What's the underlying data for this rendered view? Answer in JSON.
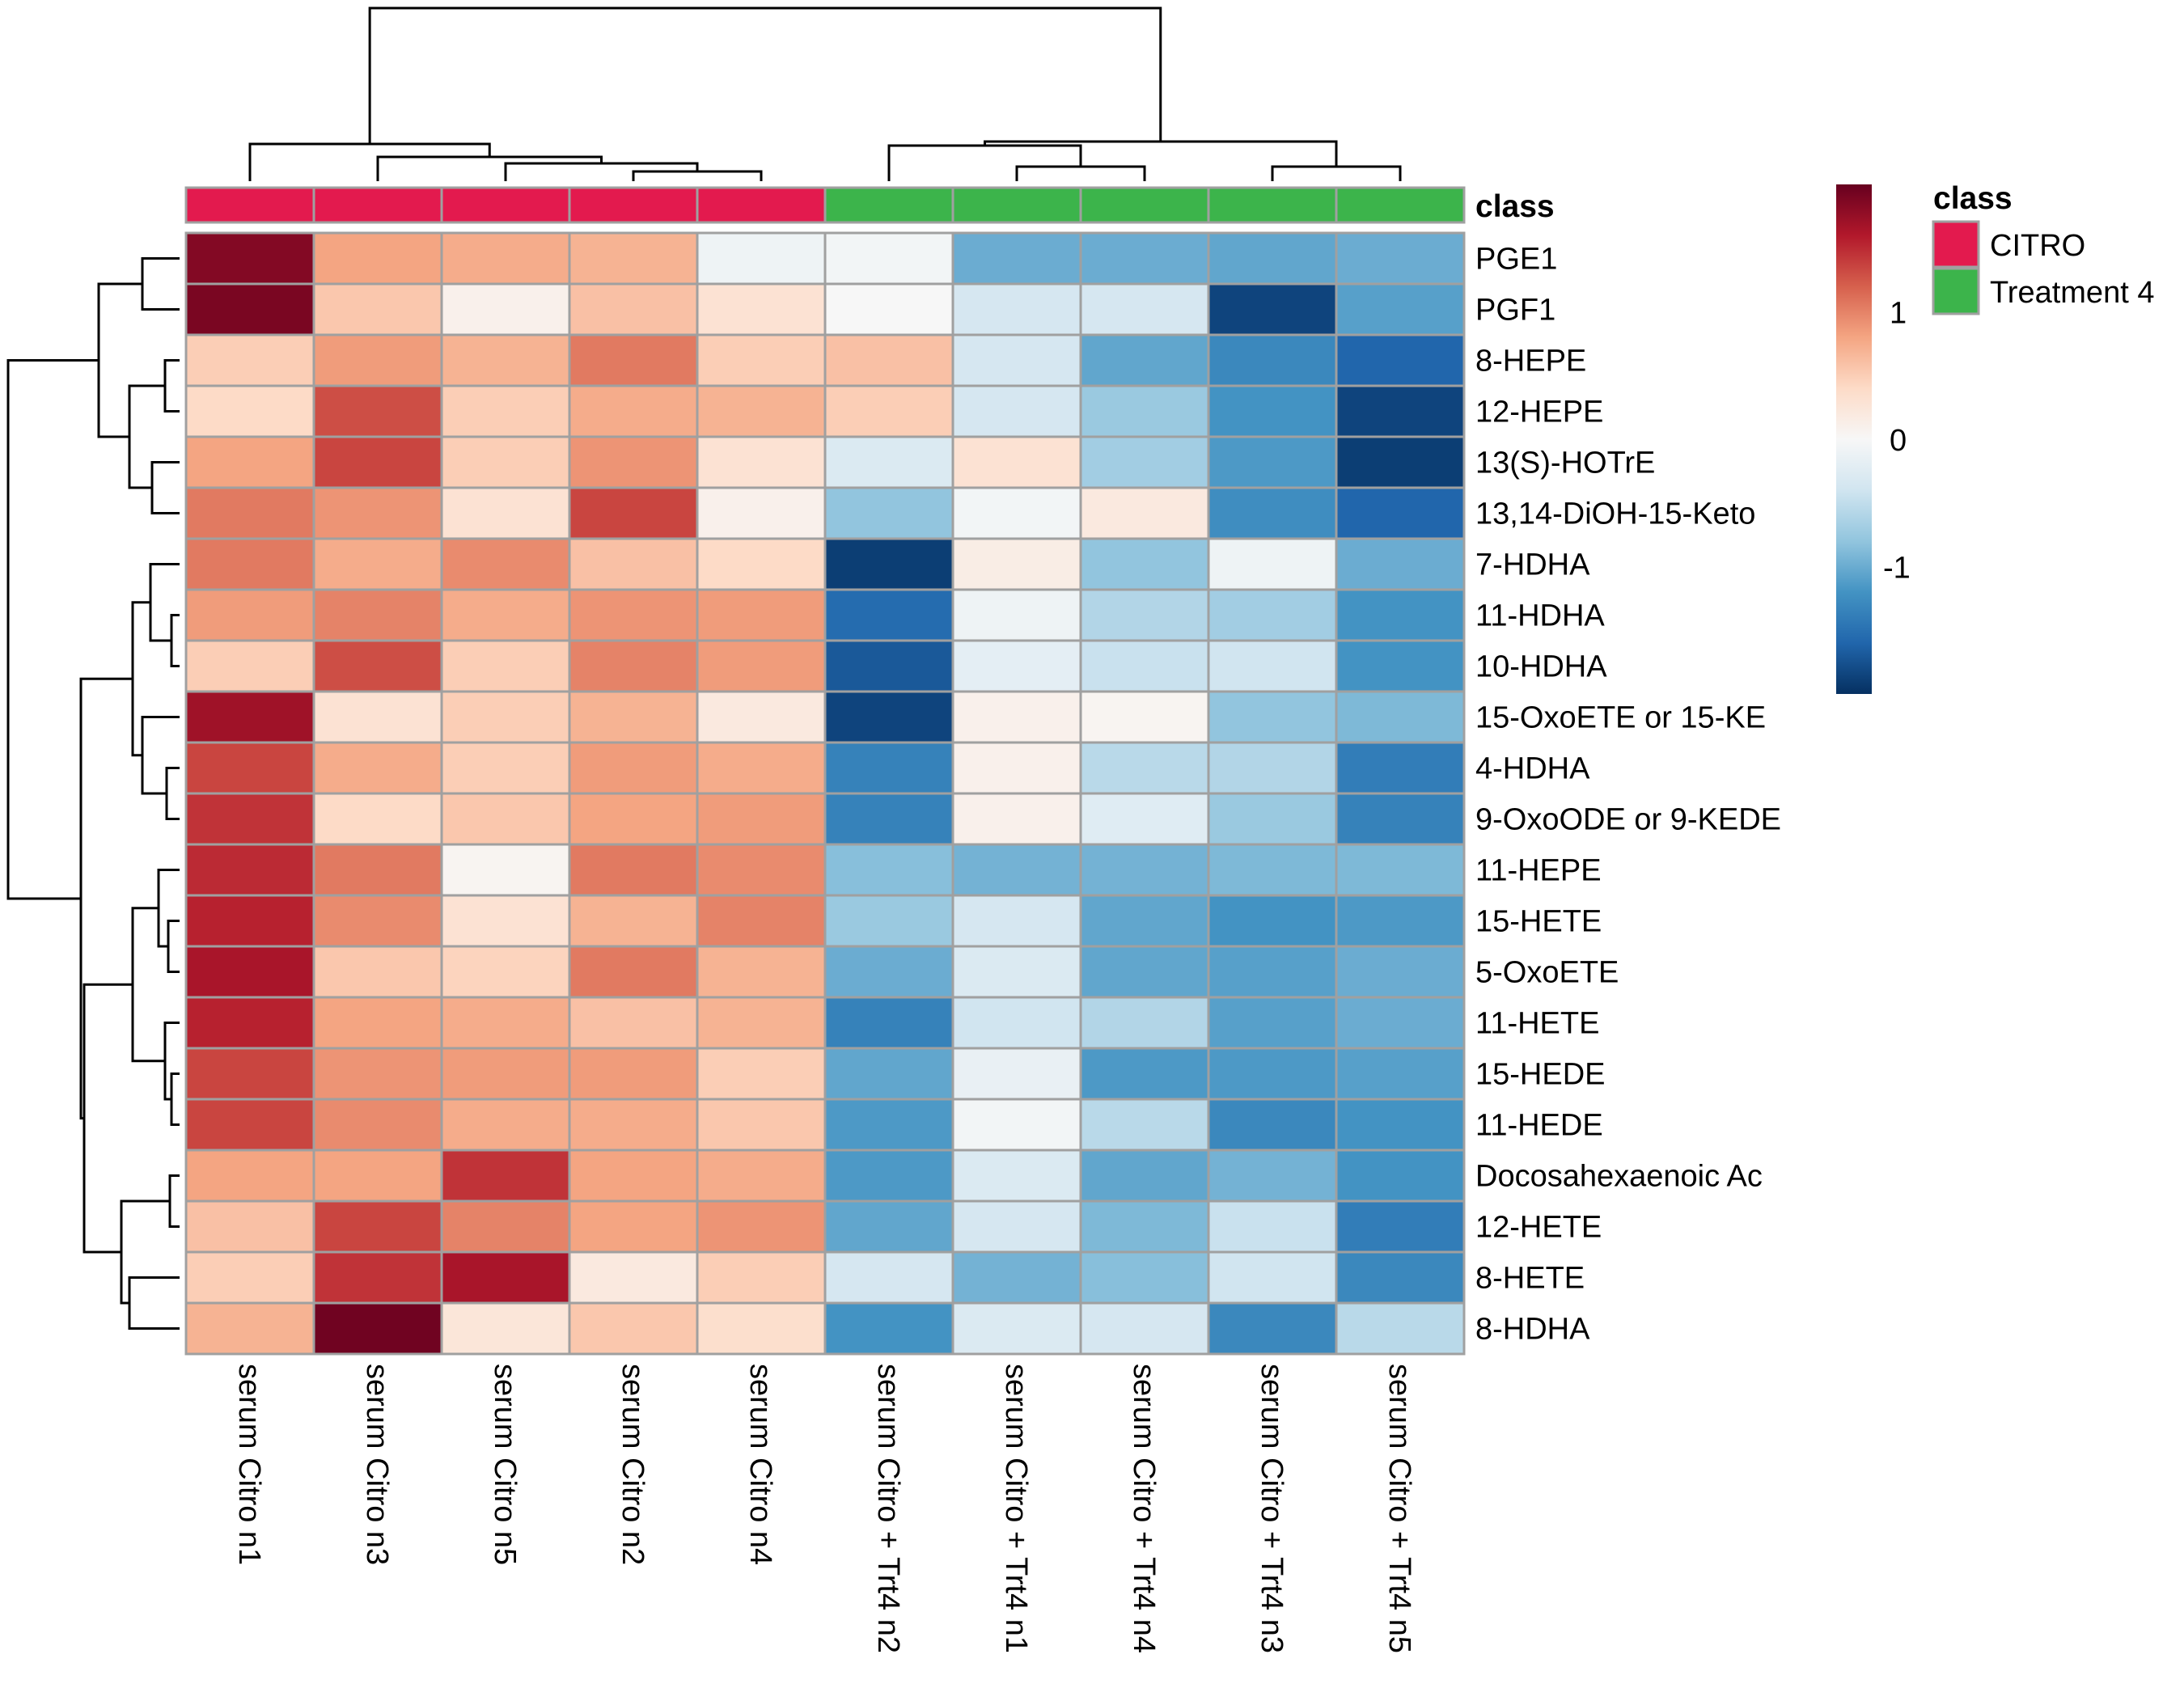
{
  "chart_data": {
    "type": "heatmap",
    "annotation_title": "class",
    "columns": [
      {
        "label": "serum Citro n1",
        "class": "CITRO"
      },
      {
        "label": "serum Citro n3",
        "class": "CITRO"
      },
      {
        "label": "serum Citro n5",
        "class": "CITRO"
      },
      {
        "label": "serum Citro n2",
        "class": "CITRO"
      },
      {
        "label": "serum Citro n4",
        "class": "CITRO"
      },
      {
        "label": "serum Citro + Trt4 n2",
        "class": "Treatment 4"
      },
      {
        "label": "serum Citro + Trt4 n1",
        "class": "Treatment 4"
      },
      {
        "label": "serum Citro + Trt4 n4",
        "class": "Treatment 4"
      },
      {
        "label": "serum Citro + Trt4 n3",
        "class": "Treatment 4"
      },
      {
        "label": "serum Citro + Trt4 n5",
        "class": "Treatment 4"
      }
    ],
    "rows": [
      "PGE1",
      "PGF1",
      "8-HEPE",
      "12-HEPE",
      "13(S)-HOTrE",
      "13,14-DiOH-15-Keto",
      "7-HDHA",
      "11-HDHA",
      "10-HDHA",
      "15-OxoETE or 15-KE",
      "4-HDHA",
      "9-OxoODE or 9-KEDE",
      "11-HEPE",
      "15-HETE",
      "5-OxoETE",
      "11-HETE",
      "15-HEDE",
      "11-HEDE",
      "Docosahexaenoic Ac",
      "12-HETE",
      "8-HETE",
      "8-HDHA"
    ],
    "values": [
      [
        1.85,
        0.8,
        0.75,
        0.7,
        -0.1,
        -0.05,
        -1.0,
        -1.0,
        -1.05,
        -1.0
      ],
      [
        1.9,
        0.55,
        0.1,
        0.6,
        0.3,
        0.0,
        -0.35,
        -0.35,
        -1.85,
        -1.1
      ],
      [
        0.5,
        0.85,
        0.7,
        1.05,
        0.5,
        0.6,
        -0.35,
        -1.05,
        -1.3,
        -1.6
      ],
      [
        0.4,
        1.3,
        0.5,
        0.75,
        0.7,
        0.5,
        -0.35,
        -0.75,
        -1.2,
        -1.85
      ],
      [
        0.8,
        1.35,
        0.5,
        0.9,
        0.3,
        -0.3,
        0.3,
        -0.7,
        -1.15,
        -1.9
      ],
      [
        1.05,
        0.9,
        0.3,
        1.35,
        0.1,
        -0.8,
        -0.05,
        0.2,
        -1.25,
        -1.6
      ],
      [
        1.05,
        0.75,
        0.95,
        0.6,
        0.4,
        -1.9,
        0.15,
        -0.8,
        -0.1,
        -1.0
      ],
      [
        0.85,
        1.0,
        0.75,
        0.9,
        0.85,
        -1.55,
        -0.1,
        -0.6,
        -0.7,
        -1.2
      ],
      [
        0.5,
        1.3,
        0.5,
        1.0,
        0.85,
        -1.7,
        -0.2,
        -0.45,
        -0.4,
        -1.2
      ],
      [
        1.7,
        0.3,
        0.5,
        0.7,
        0.2,
        -1.85,
        0.1,
        0.05,
        -0.8,
        -0.9
      ],
      [
        1.35,
        0.75,
        0.5,
        0.85,
        0.75,
        -1.35,
        0.1,
        -0.55,
        -0.6,
        -1.4
      ],
      [
        1.45,
        0.4,
        0.55,
        0.8,
        0.85,
        -1.35,
        0.1,
        -0.25,
        -0.75,
        -1.35
      ],
      [
        1.5,
        1.05,
        0.05,
        1.05,
        0.95,
        -0.85,
        -0.95,
        -0.95,
        -0.9,
        -0.9
      ],
      [
        1.55,
        0.95,
        0.3,
        0.7,
        1.0,
        -0.75,
        -0.35,
        -1.05,
        -1.2,
        -1.15
      ],
      [
        1.65,
        0.55,
        0.45,
        1.05,
        0.7,
        -1.0,
        -0.3,
        -1.05,
        -1.1,
        -1.0
      ],
      [
        1.55,
        0.8,
        0.75,
        0.6,
        0.7,
        -1.35,
        -0.4,
        -0.6,
        -1.1,
        -1.0
      ],
      [
        1.35,
        0.9,
        0.85,
        0.85,
        0.5,
        -1.05,
        -0.15,
        -1.15,
        -1.15,
        -1.1
      ],
      [
        1.35,
        0.95,
        0.75,
        0.75,
        0.55,
        -1.15,
        -0.05,
        -0.55,
        -1.3,
        -1.2
      ],
      [
        0.8,
        0.8,
        1.45,
        0.8,
        0.75,
        -1.15,
        -0.3,
        -1.05,
        -0.95,
        -1.2
      ],
      [
        0.6,
        1.35,
        1.0,
        0.8,
        0.9,
        -1.05,
        -0.35,
        -0.9,
        -0.45,
        -1.4
      ],
      [
        0.5,
        1.45,
        1.65,
        0.2,
        0.5,
        -0.35,
        -0.95,
        -0.85,
        -0.4,
        -1.3
      ],
      [
        0.7,
        1.95,
        0.25,
        0.55,
        0.35,
        -1.2,
        -0.3,
        -0.35,
        -1.3,
        -0.55
      ]
    ],
    "color_scale": {
      "ticks": [
        "1",
        "0",
        "-1"
      ],
      "tick_values": [
        1,
        0,
        -1
      ],
      "range": [
        -2,
        2
      ],
      "colors_low_to_high": [
        "#053061",
        "#2166ac",
        "#4393c3",
        "#92c5de",
        "#d1e5f0",
        "#f7f7f7",
        "#fddbc7",
        "#f4a582",
        "#d6604d",
        "#b2182b",
        "#67001f"
      ]
    },
    "legend": {
      "title": "class",
      "items": [
        {
          "label": "CITRO",
          "color": "#E31A4E"
        },
        {
          "label": "Treatment 4",
          "color": "#3CB44B"
        }
      ]
    },
    "colors": {
      "cell_border": "#a0a0a0",
      "dendrogram": "#000000"
    }
  }
}
